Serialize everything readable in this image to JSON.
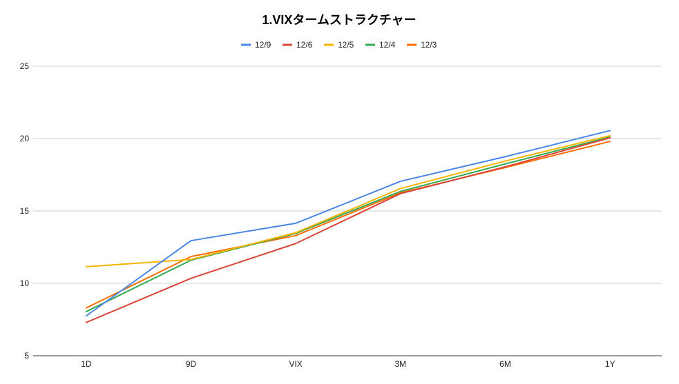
{
  "chart_data": {
    "type": "line",
    "title": "1.VIXタームストラクチャー",
    "categories": [
      "1D",
      "9D",
      "VIX",
      "3M",
      "6M",
      "1Y"
    ],
    "ylim": [
      5,
      25
    ],
    "yticks": [
      "5",
      "10",
      "15",
      "20",
      "25"
    ],
    "grid": true,
    "legend_position": "top",
    "series": [
      {
        "name": "12/9",
        "color": "#4a86e8",
        "values": [
          7.75,
          12.95,
          14.15,
          17.05,
          18.75,
          20.55
        ]
      },
      {
        "name": "12/6",
        "color": "#db4437",
        "values": [
          7.3,
          10.35,
          12.75,
          16.2,
          18.05,
          20.05
        ]
      },
      {
        "name": "12/5",
        "color": "#f4b400",
        "values": [
          11.15,
          11.65,
          13.5,
          16.55,
          18.45,
          20.2
        ]
      },
      {
        "name": "12/4",
        "color": "#34a853",
        "values": [
          8.05,
          11.6,
          13.45,
          16.35,
          18.25,
          20.1
        ]
      },
      {
        "name": "12/3",
        "color": "#ff6d01",
        "values": [
          8.3,
          11.85,
          13.3,
          16.25,
          18.0,
          19.8
        ]
      }
    ]
  }
}
